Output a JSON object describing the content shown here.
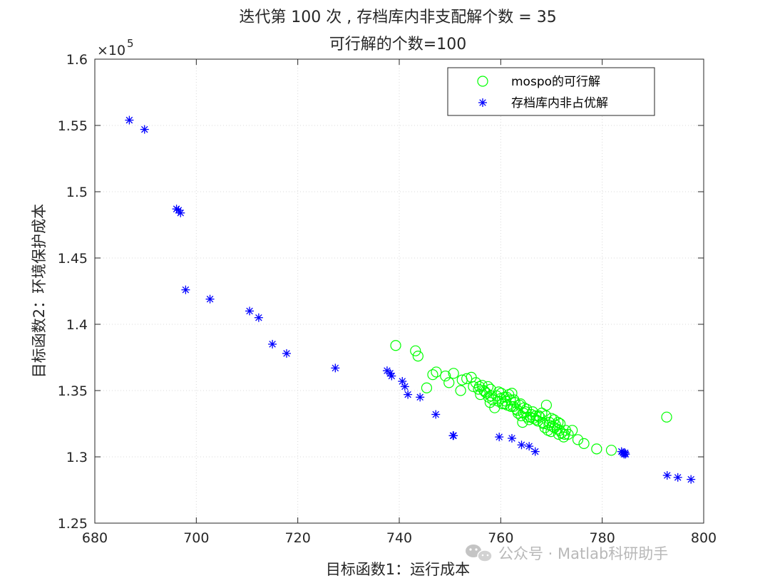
{
  "chart_data": {
    "type": "scatter",
    "title_line1": "迭代第 100 次 , 存档库内非支配解个数 = 35",
    "title_line2": "可行解的个数=100",
    "xlabel": "目标函数1：运行成本",
    "ylabel": "目标函数2：环境保护成本",
    "xlim": [
      680,
      800
    ],
    "ylim": [
      125000,
      160000
    ],
    "x_ticks": [
      "680",
      "700",
      "720",
      "740",
      "760",
      "780",
      "800"
    ],
    "y_ticks": [
      "1.25",
      "1.3",
      "1.35",
      "1.4",
      "1.45",
      "1.5",
      "1.55",
      "1.6"
    ],
    "y_exponent_base": "×10",
    "y_exponent_power": "5",
    "grid": true,
    "legend_position": "top-right",
    "series": [
      {
        "name": "mospo的可行解",
        "marker": "circle",
        "color": "#00ff00",
        "points": [
          [
            739.3,
            138400
          ],
          [
            743.2,
            138000
          ],
          [
            743.7,
            137600
          ],
          [
            746.6,
            136200
          ],
          [
            747.3,
            136400
          ],
          [
            745.4,
            135200
          ],
          [
            749.1,
            136100
          ],
          [
            749.8,
            135600
          ],
          [
            750.7,
            136300
          ],
          [
            752.1,
            135000
          ],
          [
            752.4,
            135800
          ],
          [
            753.3,
            135900
          ],
          [
            754.2,
            136000
          ],
          [
            754.6,
            135300
          ],
          [
            755.1,
            135600
          ],
          [
            755.6,
            135100
          ],
          [
            756.0,
            134700
          ],
          [
            756.3,
            135400
          ],
          [
            756.7,
            135000
          ],
          [
            757.2,
            134800
          ],
          [
            757.6,
            134500
          ],
          [
            758.0,
            135100
          ],
          [
            758.4,
            134300
          ],
          [
            758.8,
            133700
          ],
          [
            759.2,
            134600
          ],
          [
            759.6,
            134900
          ],
          [
            760.0,
            134400
          ],
          [
            760.3,
            134000
          ],
          [
            760.7,
            134500
          ],
          [
            761.0,
            134200
          ],
          [
            761.3,
            133900
          ],
          [
            761.6,
            134700
          ],
          [
            761.9,
            134300
          ],
          [
            762.2,
            134800
          ],
          [
            762.5,
            133800
          ],
          [
            762.8,
            134100
          ],
          [
            763.1,
            133600
          ],
          [
            763.4,
            133300
          ],
          [
            763.7,
            133900
          ],
          [
            764.0,
            133100
          ],
          [
            764.3,
            132600
          ],
          [
            764.6,
            133700
          ],
          [
            764.9,
            133400
          ],
          [
            765.2,
            133000
          ],
          [
            765.6,
            132800
          ],
          [
            766.0,
            133200
          ],
          [
            766.4,
            132900
          ],
          [
            766.9,
            133100
          ],
          [
            767.3,
            132700
          ],
          [
            767.7,
            133000
          ],
          [
            768.1,
            133300
          ],
          [
            768.4,
            132500
          ],
          [
            768.7,
            132200
          ],
          [
            769.0,
            133900
          ],
          [
            769.3,
            132000
          ],
          [
            769.6,
            132600
          ],
          [
            769.9,
            131900
          ],
          [
            770.2,
            132300
          ],
          [
            770.5,
            132800
          ],
          [
            770.8,
            132400
          ],
          [
            771.1,
            132100
          ],
          [
            771.4,
            131700
          ],
          [
            771.7,
            132500
          ],
          [
            772.0,
            131800
          ],
          [
            772.4,
            131500
          ],
          [
            772.8,
            132000
          ],
          [
            773.3,
            131700
          ],
          [
            774.1,
            132000
          ],
          [
            775.2,
            131300
          ],
          [
            776.4,
            131000
          ],
          [
            778.9,
            130600
          ],
          [
            781.8,
            130500
          ],
          [
            792.7,
            133000
          ],
          [
            755.8,
            135300
          ],
          [
            756.9,
            134900
          ],
          [
            758.1,
            134600
          ],
          [
            759.5,
            134200
          ],
          [
            760.8,
            134000
          ],
          [
            762.0,
            133800
          ],
          [
            763.3,
            133500
          ],
          [
            764.5,
            133300
          ],
          [
            765.8,
            133000
          ],
          [
            767.0,
            132800
          ],
          [
            768.3,
            132600
          ],
          [
            769.5,
            132400
          ],
          [
            770.6,
            132200
          ],
          [
            771.6,
            132000
          ],
          [
            757.5,
            135300
          ],
          [
            760.1,
            134800
          ],
          [
            762.6,
            134300
          ],
          [
            765.1,
            133600
          ],
          [
            767.5,
            133100
          ],
          [
            770.0,
            132900
          ],
          [
            761.2,
            134500
          ],
          [
            763.9,
            134000
          ],
          [
            766.3,
            133400
          ],
          [
            768.9,
            133100
          ],
          [
            771.3,
            132600
          ],
          [
            757.9,
            134100
          ],
          [
            772.6,
            131700
          ]
        ]
      },
      {
        "name": "存档库内非占优解",
        "marker": "asterisk",
        "color": "#0000ff",
        "points": [
          [
            686.8,
            155400
          ],
          [
            689.8,
            154700
          ],
          [
            696.1,
            148700
          ],
          [
            696.5,
            148600
          ],
          [
            696.9,
            148400
          ],
          [
            697.9,
            142600
          ],
          [
            702.7,
            141900
          ],
          [
            710.5,
            141000
          ],
          [
            712.3,
            140500
          ],
          [
            715.0,
            138500
          ],
          [
            717.8,
            137800
          ],
          [
            727.4,
            136700
          ],
          [
            737.6,
            136500
          ],
          [
            738.2,
            136300
          ],
          [
            738.5,
            136100
          ],
          [
            740.6,
            135700
          ],
          [
            741.1,
            135300
          ],
          [
            741.7,
            134700
          ],
          [
            744.1,
            134500
          ],
          [
            747.2,
            133200
          ],
          [
            750.6,
            131600
          ],
          [
            750.7,
            131600
          ],
          [
            759.7,
            131500
          ],
          [
            762.2,
            131400
          ],
          [
            764.1,
            130900
          ],
          [
            765.6,
            130800
          ],
          [
            766.8,
            130400
          ],
          [
            783.8,
            130400
          ],
          [
            784.1,
            130300
          ],
          [
            784.3,
            130200
          ],
          [
            784.5,
            130300
          ],
          [
            784.6,
            130200
          ],
          [
            792.8,
            128600
          ],
          [
            797.5,
            128300
          ],
          [
            794.9,
            128450
          ]
        ]
      }
    ]
  },
  "watermark": {
    "icon": "wechat-icon",
    "text": "公众号 · Matlab科研助手"
  }
}
